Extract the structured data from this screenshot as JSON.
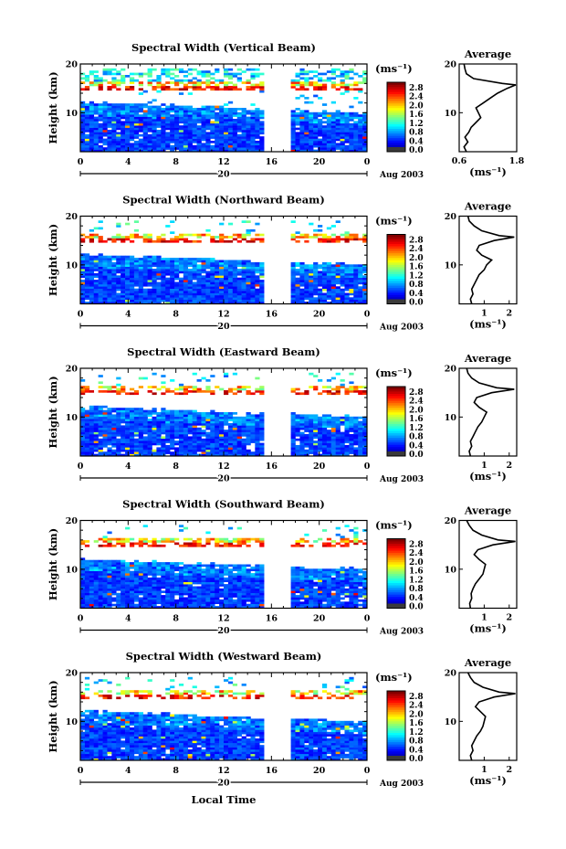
{
  "figure": {
    "x_axis_label": "Local Time",
    "date_label": "Aug 2003",
    "day_label": "20",
    "colorbar_unit": "(ms⁻¹)",
    "average_title": "Average",
    "average_unit": "(ms⁻¹)",
    "y_axis_label": "Height (km)"
  },
  "chart_data": [
    {
      "type": "heatmap",
      "title": "Spectral Width (Vertical Beam)",
      "xlabel": "Local Time",
      "ylabel": "Height (km)",
      "xlim": [
        0,
        24
      ],
      "ylim": [
        2,
        20
      ],
      "x_ticks": [
        "0",
        "4",
        "8",
        "12",
        "16",
        "20",
        "0"
      ],
      "y_ticks": [
        "10",
        "20"
      ],
      "data_gap_hours": [
        15.5,
        17.5
      ],
      "colorbar": {
        "unit": "(ms⁻¹)",
        "range": [
          0.0,
          2.9
        ],
        "ticks": [
          "2.8",
          "2.4",
          "2.0",
          "1.6",
          "1.2",
          "0.8",
          "0.4",
          "0.0"
        ]
      },
      "average_profile": {
        "xlim": [
          0.6,
          1.8
        ],
        "x_ticks": [
          "0.6",
          "1.8"
        ],
        "y_ticks": [
          "10",
          "20"
        ],
        "height_km": [
          2,
          3,
          4,
          5,
          6,
          7,
          8,
          9,
          10,
          11,
          12,
          13,
          14,
          15,
          15.7,
          16,
          17,
          18,
          19,
          20
        ],
        "width": [
          0.75,
          0.7,
          0.78,
          0.72,
          0.8,
          0.85,
          0.95,
          1.05,
          1.0,
          0.95,
          1.1,
          1.25,
          1.4,
          1.6,
          1.78,
          1.5,
          0.9,
          0.75,
          0.72,
          0.7
        ]
      }
    },
    {
      "type": "heatmap",
      "title": "Spectral Width (Northward Beam)",
      "xlabel": "Local Time",
      "ylabel": "Height (km)",
      "xlim": [
        0,
        24
      ],
      "ylim": [
        2,
        20
      ],
      "x_ticks": [
        "0",
        "4",
        "8",
        "12",
        "16",
        "20",
        "0"
      ],
      "y_ticks": [
        "10",
        "20"
      ],
      "data_gap_hours": [
        15.5,
        17.5
      ],
      "colorbar": {
        "unit": "(ms⁻¹)",
        "range": [
          0.0,
          2.9
        ],
        "ticks": [
          "2.8",
          "2.4",
          "2.0",
          "1.6",
          "1.2",
          "0.8",
          "0.4",
          "0.0"
        ]
      },
      "average_profile": {
        "xlim": [
          0,
          2.3
        ],
        "x_ticks": [
          "1",
          "2"
        ],
        "y_ticks": [
          "10",
          "20"
        ],
        "height_km": [
          2,
          3,
          4,
          5,
          6,
          7,
          8,
          9,
          10,
          11,
          12,
          13,
          14,
          15,
          15.7,
          16,
          17,
          18,
          19,
          20
        ],
        "width": [
          0.5,
          0.45,
          0.55,
          0.5,
          0.6,
          0.7,
          0.8,
          1.0,
          1.1,
          1.3,
          0.9,
          0.7,
          0.8,
          1.4,
          2.2,
          1.6,
          0.9,
          0.6,
          0.4,
          0.35
        ]
      }
    },
    {
      "type": "heatmap",
      "title": "Spectral Width (Eastward Beam)",
      "xlabel": "Local Time",
      "ylabel": "Height (km)",
      "xlim": [
        0,
        24
      ],
      "ylim": [
        2,
        20
      ],
      "x_ticks": [
        "0",
        "4",
        "8",
        "12",
        "16",
        "20",
        "0"
      ],
      "y_ticks": [
        "10",
        "20"
      ],
      "data_gap_hours": [
        15.5,
        17.5
      ],
      "colorbar": {
        "unit": "(ms⁻¹)",
        "range": [
          0.0,
          2.9
        ],
        "ticks": [
          "2.8",
          "2.4",
          "2.0",
          "1.6",
          "1.2",
          "0.8",
          "0.4",
          "0.0"
        ]
      },
      "average_profile": {
        "xlim": [
          0,
          2.3
        ],
        "x_ticks": [
          "1",
          "2"
        ],
        "y_ticks": [
          "10",
          "20"
        ],
        "height_km": [
          2,
          3,
          4,
          5,
          6,
          7,
          8,
          9,
          10,
          11,
          12,
          13,
          14,
          15,
          15.7,
          16,
          17,
          18,
          19,
          20
        ],
        "width": [
          0.45,
          0.4,
          0.5,
          0.45,
          0.55,
          0.65,
          0.75,
          0.9,
          1.0,
          1.1,
          0.8,
          0.6,
          0.7,
          1.3,
          2.2,
          1.5,
          0.8,
          0.5,
          0.35,
          0.3
        ]
      }
    },
    {
      "type": "heatmap",
      "title": "Spectral Width (Southward Beam)",
      "xlabel": "Local Time",
      "ylabel": "Height (km)",
      "xlim": [
        0,
        24
      ],
      "ylim": [
        2,
        20
      ],
      "x_ticks": [
        "0",
        "4",
        "8",
        "12",
        "16",
        "20",
        "0"
      ],
      "y_ticks": [
        "10",
        "20"
      ],
      "data_gap_hours": [
        15.5,
        17.5
      ],
      "colorbar": {
        "unit": "(ms⁻¹)",
        "range": [
          0.0,
          2.9
        ],
        "ticks": [
          "2.8",
          "2.4",
          "2.0",
          "1.6",
          "1.2",
          "0.8",
          "0.4",
          "0.0"
        ]
      },
      "average_profile": {
        "xlim": [
          0,
          2.3
        ],
        "x_ticks": [
          "1",
          "2"
        ],
        "y_ticks": [
          "10",
          "20"
        ],
        "height_km": [
          2,
          3,
          4,
          5,
          6,
          7,
          8,
          9,
          10,
          11,
          12,
          13,
          14,
          15,
          15.7,
          16,
          17,
          18,
          19,
          20
        ],
        "width": [
          0.45,
          0.42,
          0.5,
          0.48,
          0.55,
          0.65,
          0.8,
          0.95,
          1.0,
          1.05,
          0.8,
          0.6,
          0.75,
          1.35,
          2.25,
          1.55,
          0.9,
          0.55,
          0.4,
          0.3
        ]
      }
    },
    {
      "type": "heatmap",
      "title": "Spectral Width (Westward Beam)",
      "xlabel": "Local Time",
      "ylabel": "Height (km)",
      "xlim": [
        0,
        24
      ],
      "ylim": [
        2,
        20
      ],
      "x_ticks": [
        "0",
        "4",
        "8",
        "12",
        "16",
        "20",
        "0"
      ],
      "y_ticks": [
        "10",
        "20"
      ],
      "data_gap_hours": [
        15.5,
        17.5
      ],
      "colorbar": {
        "unit": "(ms⁻¹)",
        "range": [
          0.0,
          2.9
        ],
        "ticks": [
          "2.8",
          "2.4",
          "2.0",
          "1.6",
          "1.2",
          "0.8",
          "0.4",
          "0.0"
        ]
      },
      "average_profile": {
        "xlim": [
          0,
          2.3
        ],
        "x_ticks": [
          "1",
          "2"
        ],
        "y_ticks": [
          "10",
          "20"
        ],
        "height_km": [
          2,
          3,
          4,
          5,
          6,
          7,
          8,
          9,
          10,
          11,
          12,
          13,
          14,
          15,
          15.7,
          16,
          17,
          18,
          19,
          20
        ],
        "width": [
          0.5,
          0.45,
          0.55,
          0.5,
          0.6,
          0.7,
          0.85,
          0.95,
          1.0,
          1.05,
          0.85,
          0.65,
          0.8,
          1.4,
          2.25,
          1.6,
          0.95,
          0.6,
          0.45,
          0.35
        ]
      }
    }
  ]
}
